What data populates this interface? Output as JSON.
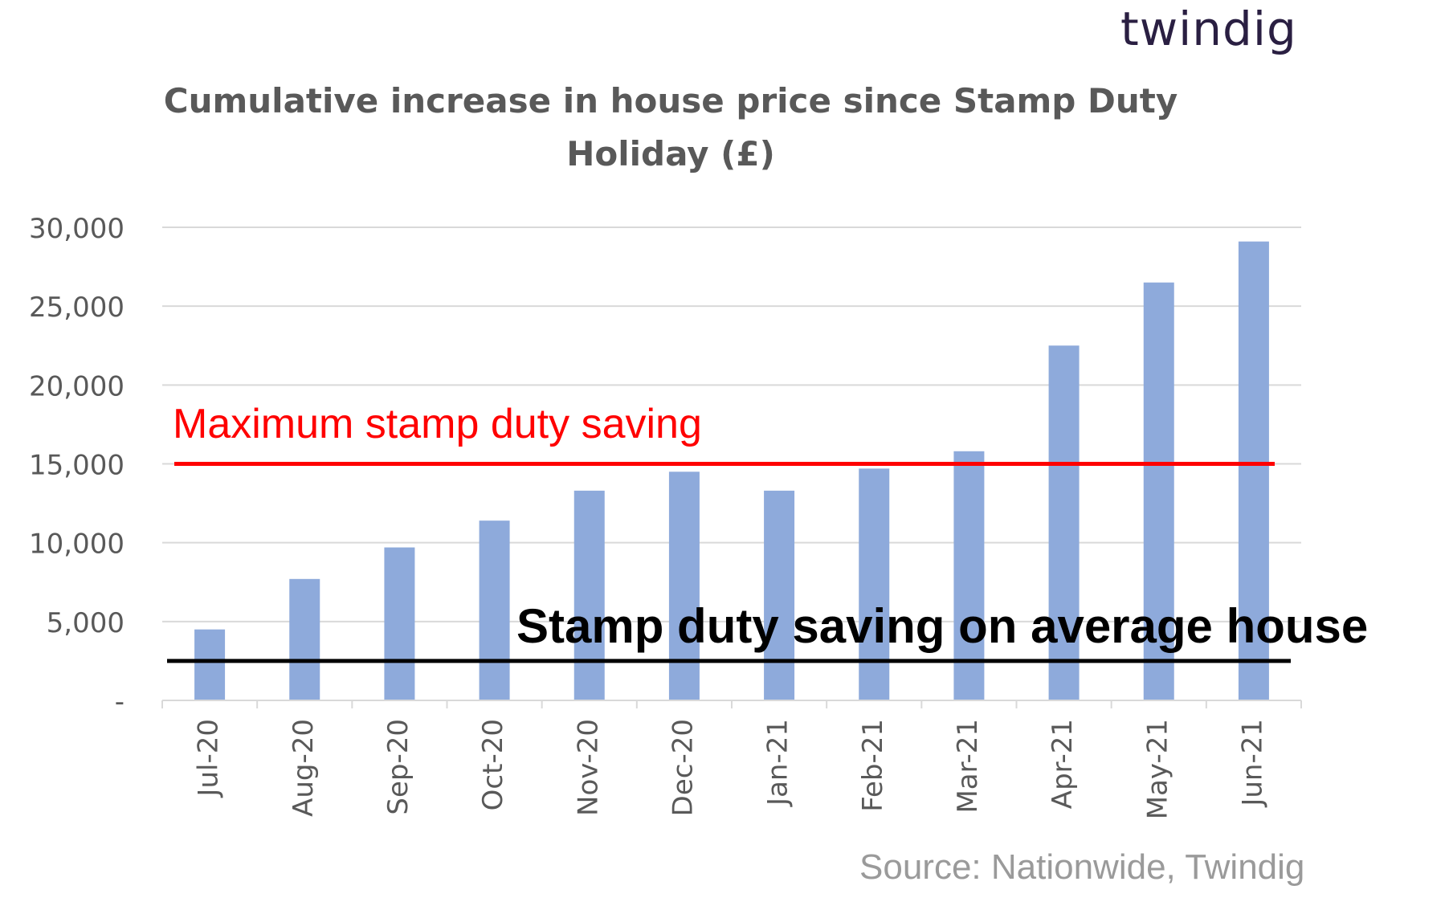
{
  "branding": {
    "logo_text": "twindig"
  },
  "source_note": "Source: Nationwide, Twindig",
  "chart_data": {
    "type": "bar",
    "title_lines": [
      "Cumulative increase in house price since Stamp Duty",
      "Holiday (£)"
    ],
    "categories": [
      "Jul-20",
      "Aug-20",
      "Sep-20",
      "Oct-20",
      "Nov-20",
      "Dec-20",
      "Jan-21",
      "Feb-21",
      "Mar-21",
      "Apr-21",
      "May-21",
      "Jun-21"
    ],
    "values": [
      4500,
      7700,
      9700,
      11400,
      13300,
      14500,
      13300,
      14700,
      15800,
      22500,
      26500,
      29100
    ],
    "ylim": [
      0,
      30000
    ],
    "yticks": [
      {
        "value": 0,
        "label": "-"
      },
      {
        "value": 5000,
        "label": "5,000"
      },
      {
        "value": 10000,
        "label": "10,000"
      },
      {
        "value": 15000,
        "label": "15,000"
      },
      {
        "value": 20000,
        "label": "20,000"
      },
      {
        "value": 25000,
        "label": "25,000"
      },
      {
        "value": 30000,
        "label": "30,000"
      }
    ],
    "grid": true,
    "bar_color": "#8eaadb",
    "reference_lines": [
      {
        "label": "Maximum stamp duty saving",
        "value": 15000,
        "color": "#ff0000"
      },
      {
        "label": "Stamp duty saving on average house",
        "value": 2500,
        "color": "#000000"
      }
    ]
  }
}
